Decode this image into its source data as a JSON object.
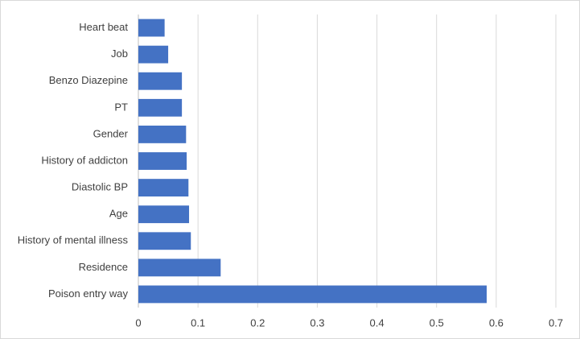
{
  "chart_data": {
    "type": "bar",
    "orientation": "horizontal",
    "categories": [
      "Heart beat",
      "Job",
      "Benzo Diazepine",
      "PT",
      "Gender",
      "History of addicton",
      "Diastolic BP",
      "Age",
      "History of mental illness",
      "Residence",
      "Poison entry way"
    ],
    "values": [
      0.044,
      0.05,
      0.073,
      0.073,
      0.08,
      0.081,
      0.084,
      0.085,
      0.088,
      0.138,
      0.584
    ],
    "color": "#4472c4",
    "xlim": [
      0,
      0.7
    ],
    "xticks": [
      0,
      0.1,
      0.2,
      0.3,
      0.4,
      0.5,
      0.6,
      0.7
    ],
    "grid": true
  }
}
